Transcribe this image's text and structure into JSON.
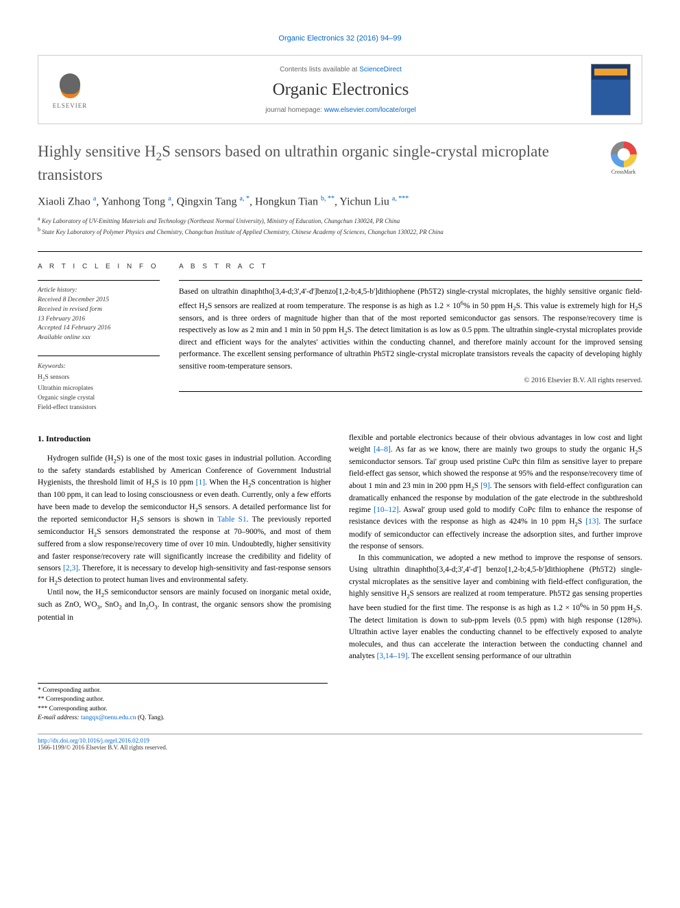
{
  "journal_ref": "Organic Electronics 32 (2016) 94–99",
  "masthead": {
    "publisher": "ELSEVIER",
    "contents_prefix": "Contents lists available at ",
    "contents_link": "ScienceDirect",
    "journal_name": "Organic Electronics",
    "homepage_prefix": "journal homepage: ",
    "homepage_url": "www.elsevier.com/locate/orgel"
  },
  "crossmark_label": "CrossMark",
  "title_html": "Highly sensitive H<sub>2</sub>S sensors based on ultrathin organic single-crystal microplate transistors",
  "authors_html": "Xiaoli Zhao <sup>a</sup>, Yanhong Tong <sup>a</sup>, Qingxin Tang <sup>a, *</sup>, Hongkun Tian <sup>b, **</sup>, Yichun Liu <sup>a, ***</sup>",
  "affiliations": [
    {
      "sup": "a",
      "text": "Key Laboratory of UV-Emitting Materials and Technology (Northeast Normal University), Ministry of Education, Changchun 130024, PR China"
    },
    {
      "sup": "b",
      "text": "State Key Laboratory of Polymer Physics and Chemistry, Changchun Institute of Applied Chemistry, Chinese Academy of Sciences, Changchun 130022, PR China"
    }
  ],
  "info": {
    "label": "A R T I C L E   I N F O",
    "history_label": "Article history:",
    "received": "Received 8 December 2015",
    "revised1": "Received in revised form",
    "revised2": "13 February 2016",
    "accepted": "Accepted 14 February 2016",
    "online": "Available online xxx",
    "keywords_label": "Keywords:",
    "keywords_html": "H<sub>2</sub>S sensors<br>Ultrathin microplates<br>Organic single crystal<br>Field-effect transistors"
  },
  "abstract": {
    "label": "A B S T R A C T",
    "text_html": "Based on ultrathin dinaphtho[3,4-d;3',4'-d']benzo[1,2-b;4,5-b']dithiophene (Ph5T2) single-crystal microplates, the highly sensitive organic field-effect H<sub>2</sub>S sensors are realized at room temperature. The response is as high as 1.2 × 10<sup>6</sup>% in 50 ppm H<sub>2</sub>S. This value is extremely high for H<sub>2</sub>S sensors, and is three orders of magnitude higher than that of the most reported semiconductor gas sensors. The response/recovery time is respectively as low as 2 min and 1 min in 50 ppm H<sub>2</sub>S. The detect limitation is as low as 0.5 ppm. The ultrathin single-crystal microplates provide direct and efficient ways for the analytes' activities within the conducting channel, and therefore mainly account for the improved sensing performance. The excellent sensing performance of ultrathin Ph5T2 single-crystal microplate transistors reveals the capacity of developing highly sensitive room-temperature sensors.",
    "copyright": "© 2016 Elsevier B.V. All rights reserved."
  },
  "body": {
    "heading": "1. Introduction",
    "left_html": "<p>Hydrogen sulfide (H<sub>2</sub>S) is one of the most toxic gases in industrial pollution. According to the safety standards established by American Conference of Government Industrial Hygienists, the threshold limit of H<sub>2</sub>S is 10 ppm <a href='#'>[1]</a>. When the H<sub>2</sub>S concentration is higher than 100 ppm, it can lead to losing consciousness or even death. Currently, only a few efforts have been made to develop the semiconductor H<sub>2</sub>S sensors. A detailed performance list for the reported semiconductor H<sub>2</sub>S sensors is shown in <a href='#'>Table S1</a>. The previously reported semiconductor H<sub>2</sub>S sensors demonstrated the response at 70–900%, and most of them suffered from a slow response/recovery time of over 10 min. Undoubtedly, higher sensitivity and faster response/recovery rate will significantly increase the credibility and fidelity of sensors <a href='#'>[2,3]</a>. Therefore, it is necessary to develop high-sensitivity and fast-response sensors for H<sub>2</sub>S detection to protect human lives and environmental safety.</p><p>Until now, the H<sub>2</sub>S semiconductor sensors are mainly focused on inorganic metal oxide, such as ZnO, WO<sub>3</sub>, SnO<sub>2</sub> and In<sub>2</sub>O<sub>3</sub>. In contrast, the organic sensors show the promising potential in</p>",
    "right_html": "<p style='text-indent:0'>flexible and portable electronics because of their obvious advantages in low cost and light weight <a href='#'>[4–8]</a>. As far as we know, there are mainly two groups to study the organic H<sub>2</sub>S semiconductor sensors. Tai' group used pristine CuPc thin film as sensitive layer to prepare field-effect gas sensor, which showed the response at 95% and the response/recovery time of about 1 min and 23 min in 200 ppm H<sub>2</sub>S <a href='#'>[9]</a>. The sensors with field-effect configuration can dramatically enhanced the response by modulation of the gate electrode in the subthreshold regime <a href='#'>[10–12]</a>. Aswal' group used gold to modify CoPc film to enhance the response of resistance devices with the response as high as 424% in 10 ppm H<sub>2</sub>S <a href='#'>[13]</a>. The surface modify of semiconductor can effectively increase the adsorption sites, and further improve the response of sensors.</p><p>In this communication, we adopted a new method to improve the response of sensors. Using ultrathin dinaphtho[3,4-d;3',4'-d'] benzo[1,2-b;4,5-b']dithiophene (Ph5T2) single-crystal microplates as the sensitive layer and combining with field-effect configuration, the highly sensitive H<sub>2</sub>S sensors are realized at room temperature. Ph5T2 gas sensing properties have been studied for the first time. The response is as high as 1.2 × 10<sup>6</sup>% in 50 ppm H<sub>2</sub>S. The detect limitation is down to sub-ppm levels (0.5 ppm) with high response (128%). Ultrathin active layer enables the conducting channel to be effectively exposed to analyte molecules, and thus can accelerate the interaction between the conducting channel and analytes <a href='#'>[3,14–19]</a>. The excellent sensing performance of our ultrathin</p>"
  },
  "footnotes": {
    "l1": "* Corresponding author.",
    "l2": "** Corresponding author.",
    "l3": "*** Corresponding author.",
    "email_label": "E-mail address:",
    "email": "tangqx@nenu.edu.cn",
    "email_suffix": " (Q. Tang)."
  },
  "doi": {
    "url": "http://dx.doi.org/10.1016/j.orgel.2016.02.019",
    "issn_line": "1566-1199/© 2016 Elsevier B.V. All rights reserved."
  }
}
